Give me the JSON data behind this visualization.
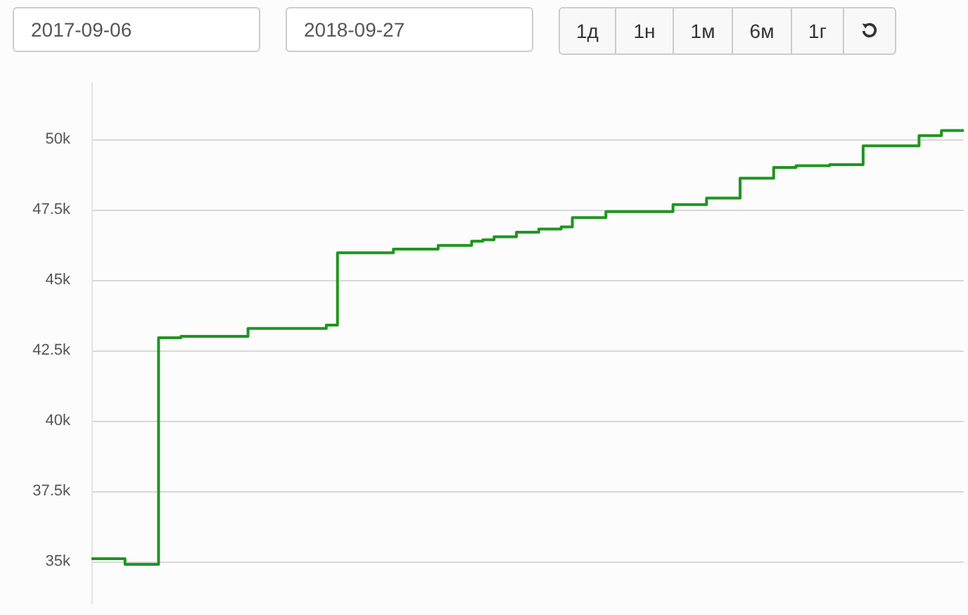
{
  "chart_data": {
    "type": "step",
    "annotations": [
      "2017-09-06",
      "2018-09-27",
      "1д",
      "1н",
      "1м",
      "6м",
      "1г"
    ],
    "categories": [
      null,
      null,
      null,
      null,
      null,
      null,
      null,
      null,
      null,
      null,
      null,
      null,
      null,
      null,
      null,
      null,
      null,
      null,
      null,
      null,
      null,
      null,
      null,
      null,
      null,
      null,
      null,
      null,
      null,
      null,
      null,
      null,
      null,
      null,
      null,
      null,
      null,
      null,
      null,
      null,
      null,
      null,
      null,
      null,
      null,
      null,
      null,
      null,
      null,
      null,
      null,
      null,
      null,
      null,
      null,
      null,
      null,
      null,
      null,
      null,
      null,
      null,
      null,
      null,
      null,
      null,
      null,
      null,
      null,
      null,
      null,
      null,
      null,
      null,
      null,
      null,
      null,
      null,
      null
    ],
    "series": [
      {
        "color": "#1f951f",
        "values": [
          35100,
          35100,
          35100,
          34900,
          34900,
          34900,
          42950,
          42950,
          43000,
          43000,
          43000,
          43000,
          43000,
          43000,
          43280,
          43280,
          43280,
          43280,
          43280,
          43280,
          43280,
          43400,
          45970,
          45970,
          45970,
          45970,
          45970,
          46100,
          46100,
          46100,
          46100,
          46230,
          46230,
          46230,
          46380,
          46430,
          46540,
          46540,
          46700,
          46700,
          46810,
          46810,
          46890,
          47220,
          47220,
          47220,
          47430,
          47430,
          47430,
          47430,
          47430,
          47430,
          47680,
          47680,
          47680,
          47910,
          47910,
          47910,
          48620,
          48620,
          48620,
          49000,
          49000,
          49060,
          49060,
          49060,
          49100,
          49100,
          49100,
          49770,
          49770,
          49770,
          49770,
          49770,
          50130,
          50130,
          50310,
          50310,
          50310
        ]
      }
    ],
    "ylim": [
      33500,
      52000
    ],
    "yticks": [
      {
        "value": 35000,
        "label": "35k"
      },
      {
        "value": 37500,
        "label": "37.5k"
      },
      {
        "value": 40000,
        "label": "40k"
      },
      {
        "value": 42500,
        "label": "42.5k"
      },
      {
        "value": 45000,
        "label": "45k"
      },
      {
        "value": 47500,
        "label": "47.5k"
      },
      {
        "value": 50000,
        "label": "50k"
      }
    ],
    "grid": "y",
    "marker": "none",
    "line_style": "solid"
  }
}
